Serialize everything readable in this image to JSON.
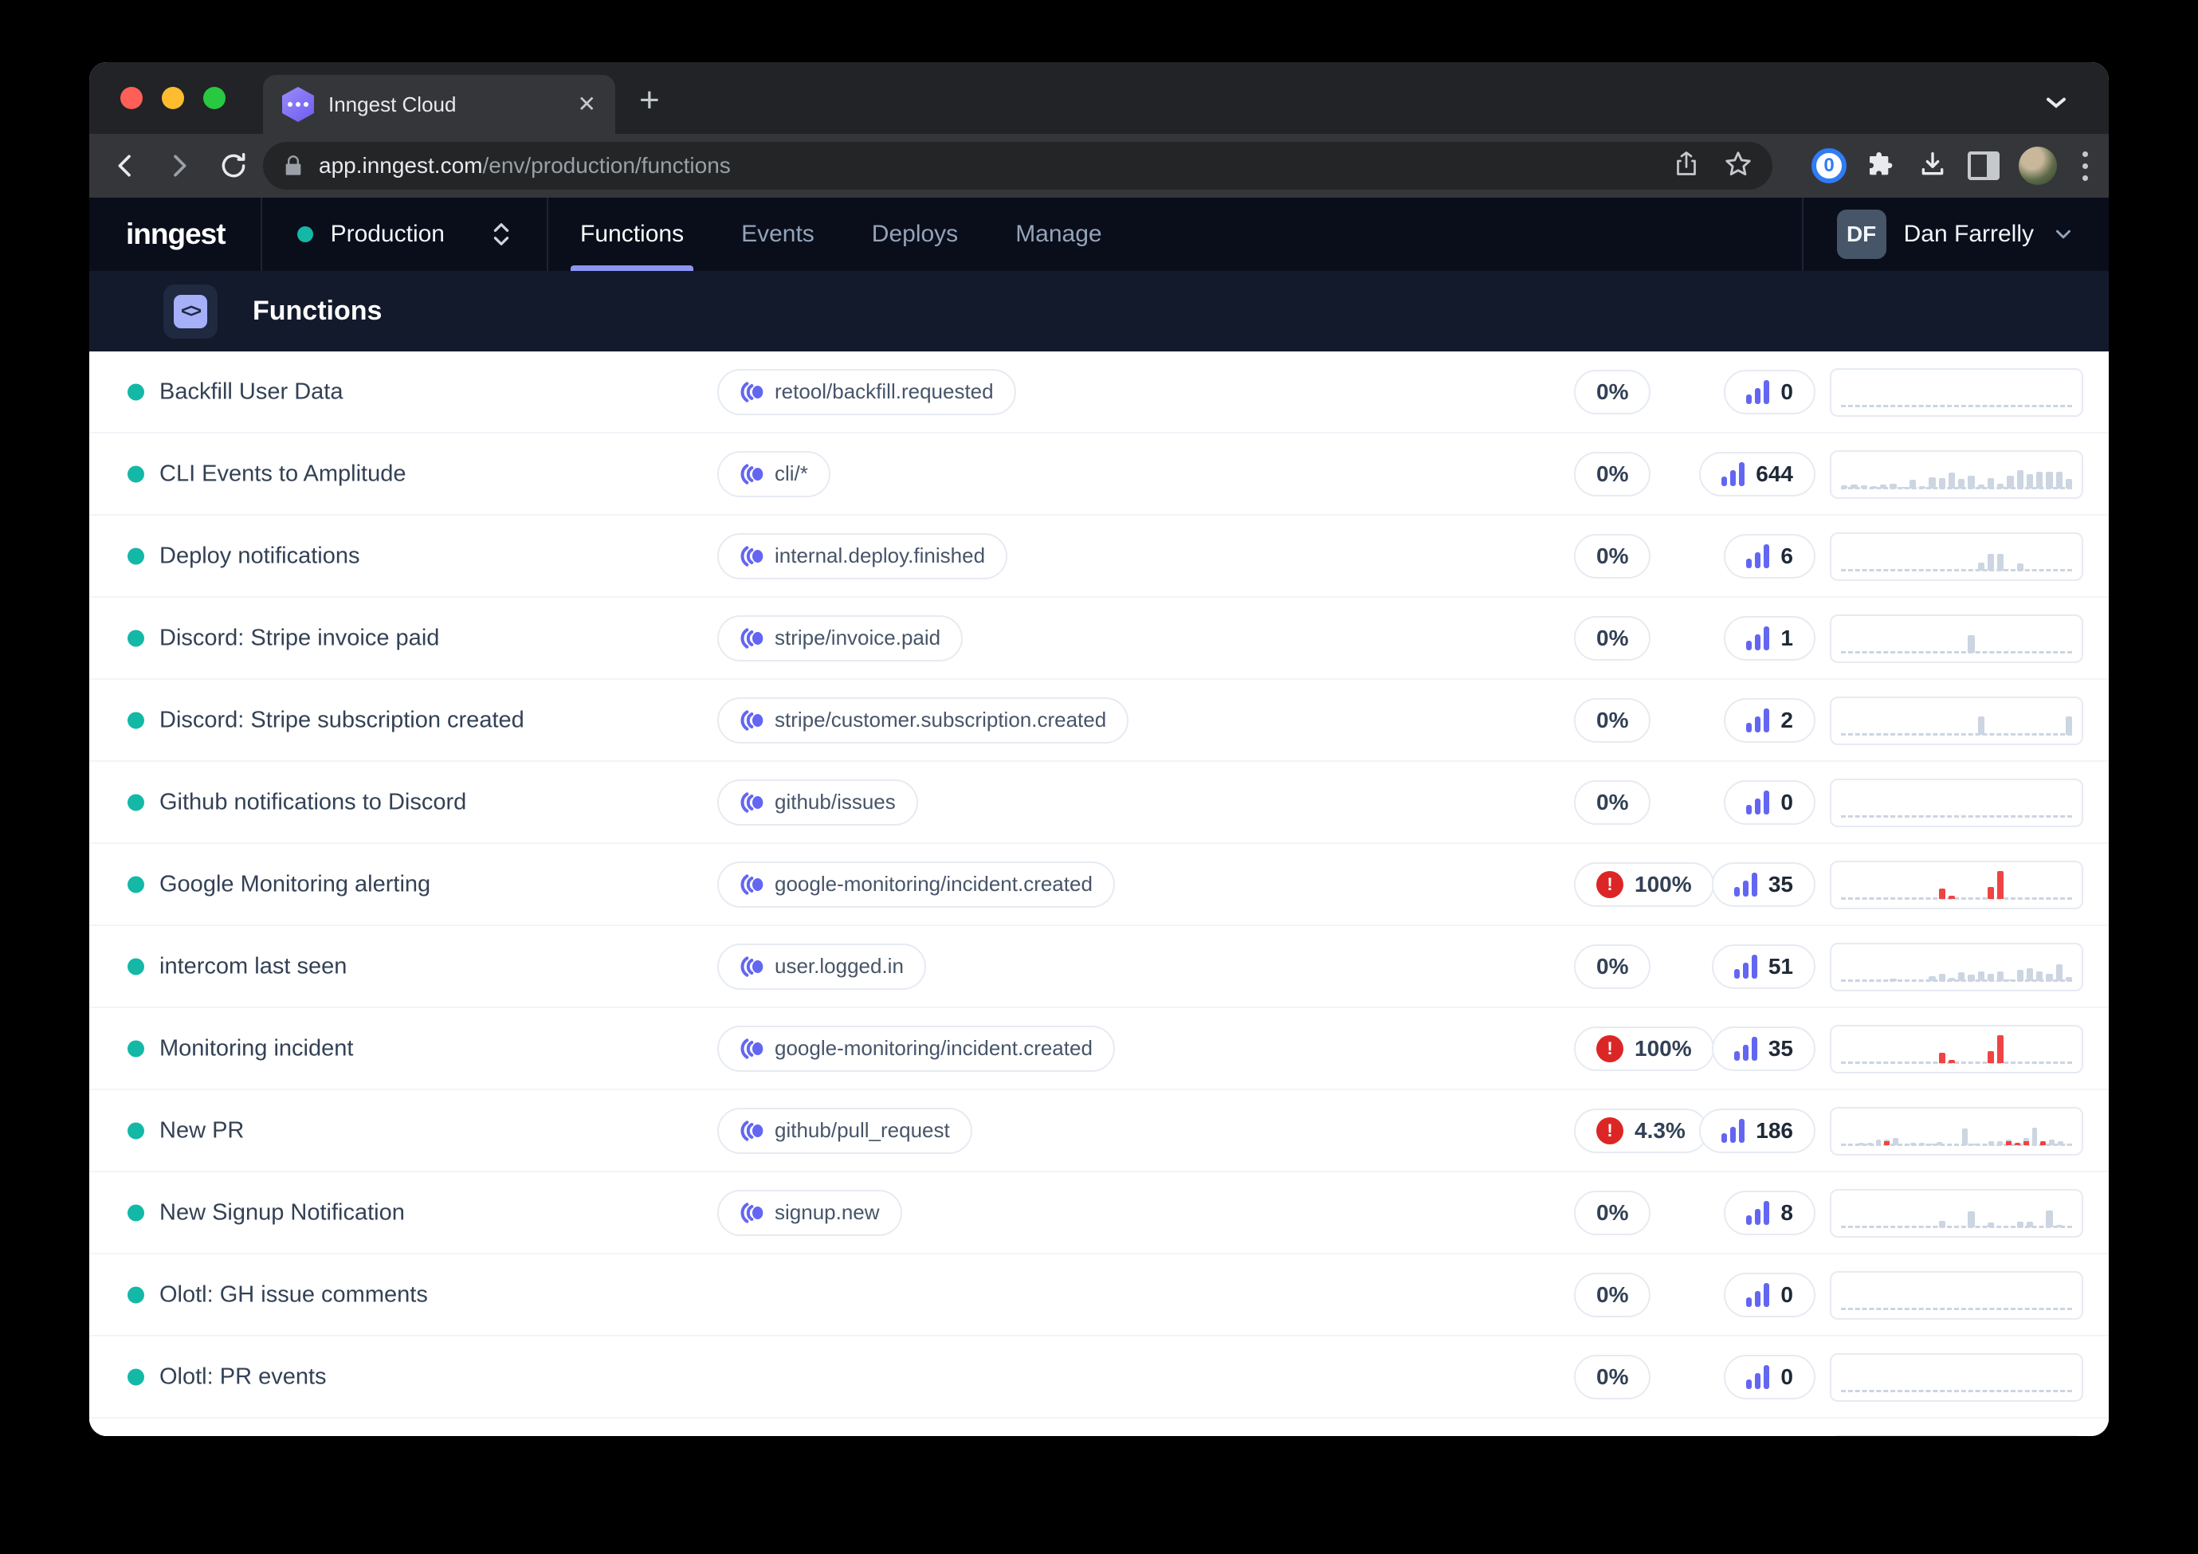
{
  "colors": {
    "accent_indigo": "#6366f1",
    "teal_status": "#14b8a6",
    "error_red": "#dc2626",
    "chart_gray": "#ccd5e1",
    "chart_red": "#ef4444",
    "nav_bg": "#0a0e1b",
    "pagehead_bg": "#131a2c"
  },
  "browser": {
    "tab_title": "Inngest Cloud",
    "url_host": "app.inngest.com",
    "url_path": "/env/production/functions"
  },
  "nav": {
    "logo": "inngest",
    "environment": "Production",
    "tabs": [
      {
        "label": "Functions",
        "active": true
      },
      {
        "label": "Events",
        "active": false
      },
      {
        "label": "Deploys",
        "active": false
      },
      {
        "label": "Manage",
        "active": false
      }
    ],
    "user": {
      "initials": "DF",
      "name": "Dan Farrelly"
    }
  },
  "page": {
    "title": "Functions"
  },
  "functions": [
    {
      "name": "Backfill User Data",
      "event": "retool/backfill.requested",
      "rate": "0%",
      "error": false,
      "count": "0",
      "bars": []
    },
    {
      "name": "CLI Events to Amplitude",
      "event": "cli/*",
      "rate": "0%",
      "error": false,
      "count": "644",
      "bars": [
        [
          8,
          "g"
        ],
        [
          12,
          "g"
        ],
        [
          8,
          "g"
        ],
        [
          6,
          "g"
        ],
        [
          12,
          "g"
        ],
        [
          14,
          "g"
        ],
        [
          4,
          "g"
        ],
        [
          24,
          "g"
        ],
        [
          6,
          "g"
        ],
        [
          30,
          "g"
        ],
        [
          28,
          "g"
        ],
        [
          44,
          "g"
        ],
        [
          26,
          "g"
        ],
        [
          36,
          "g"
        ],
        [
          10,
          "g"
        ],
        [
          28,
          "g"
        ],
        [
          14,
          "g"
        ],
        [
          36,
          "g"
        ],
        [
          50,
          "g"
        ],
        [
          40,
          "g"
        ],
        [
          46,
          "g"
        ],
        [
          46,
          "g"
        ],
        [
          46,
          "g"
        ],
        [
          26,
          "g"
        ]
      ]
    },
    {
      "name": "Deploy notifications",
      "event": "internal.deploy.finished",
      "rate": "0%",
      "error": false,
      "count": "6",
      "bars": [
        [
          0,
          "g"
        ],
        [
          0,
          "g"
        ],
        [
          0,
          "g"
        ],
        [
          0,
          "g"
        ],
        [
          0,
          "g"
        ],
        [
          0,
          "g"
        ],
        [
          0,
          "g"
        ],
        [
          0,
          "g"
        ],
        [
          0,
          "g"
        ],
        [
          0,
          "g"
        ],
        [
          0,
          "g"
        ],
        [
          0,
          "g"
        ],
        [
          0,
          "g"
        ],
        [
          0,
          "g"
        ],
        [
          22,
          "g"
        ],
        [
          46,
          "g"
        ],
        [
          46,
          "g"
        ],
        [
          0,
          "g"
        ],
        [
          20,
          "g"
        ],
        [
          0,
          "g"
        ],
        [
          0,
          "g"
        ],
        [
          0,
          "g"
        ],
        [
          0,
          "g"
        ],
        [
          0,
          "g"
        ]
      ]
    },
    {
      "name": "Discord: Stripe invoice paid",
      "event": "stripe/invoice.paid",
      "rate": "0%",
      "error": false,
      "count": "1",
      "bars": [
        [
          0,
          "g"
        ],
        [
          0,
          "g"
        ],
        [
          0,
          "g"
        ],
        [
          0,
          "g"
        ],
        [
          0,
          "g"
        ],
        [
          0,
          "g"
        ],
        [
          0,
          "g"
        ],
        [
          0,
          "g"
        ],
        [
          0,
          "g"
        ],
        [
          0,
          "g"
        ],
        [
          0,
          "g"
        ],
        [
          0,
          "g"
        ],
        [
          0,
          "g"
        ],
        [
          48,
          "g"
        ],
        [
          0,
          "g"
        ],
        [
          0,
          "g"
        ],
        [
          0,
          "g"
        ],
        [
          0,
          "g"
        ],
        [
          0,
          "g"
        ],
        [
          0,
          "g"
        ],
        [
          0,
          "g"
        ],
        [
          0,
          "g"
        ],
        [
          0,
          "g"
        ],
        [
          0,
          "g"
        ]
      ]
    },
    {
      "name": "Discord: Stripe subscription created",
      "event": "stripe/customer.subscription.created",
      "rate": "0%",
      "error": false,
      "count": "2",
      "bars": [
        [
          0,
          "g"
        ],
        [
          0,
          "g"
        ],
        [
          0,
          "g"
        ],
        [
          0,
          "g"
        ],
        [
          0,
          "g"
        ],
        [
          0,
          "g"
        ],
        [
          0,
          "g"
        ],
        [
          0,
          "g"
        ],
        [
          0,
          "g"
        ],
        [
          0,
          "g"
        ],
        [
          0,
          "g"
        ],
        [
          0,
          "g"
        ],
        [
          0,
          "g"
        ],
        [
          0,
          "g"
        ],
        [
          50,
          "g"
        ],
        [
          0,
          "g"
        ],
        [
          0,
          "g"
        ],
        [
          0,
          "g"
        ],
        [
          0,
          "g"
        ],
        [
          0,
          "g"
        ],
        [
          0,
          "g"
        ],
        [
          0,
          "g"
        ],
        [
          0,
          "g"
        ],
        [
          50,
          "g"
        ]
      ]
    },
    {
      "name": "Github notifications to Discord",
      "event": "github/issues",
      "rate": "0%",
      "error": false,
      "count": "0",
      "bars": []
    },
    {
      "name": "Google Monitoring alerting",
      "event": "google-monitoring/incident.created",
      "rate": "100%",
      "error": true,
      "count": "35",
      "bars": [
        [
          0,
          "g"
        ],
        [
          0,
          "g"
        ],
        [
          0,
          "g"
        ],
        [
          0,
          "g"
        ],
        [
          0,
          "g"
        ],
        [
          0,
          "g"
        ],
        [
          0,
          "g"
        ],
        [
          0,
          "g"
        ],
        [
          0,
          "g"
        ],
        [
          0,
          "g"
        ],
        [
          28,
          "r"
        ],
        [
          8,
          "r"
        ],
        [
          0,
          "g"
        ],
        [
          0,
          "g"
        ],
        [
          0,
          "g"
        ],
        [
          34,
          "r"
        ],
        [
          78,
          "r"
        ],
        [
          0,
          "g"
        ],
        [
          0,
          "g"
        ],
        [
          0,
          "g"
        ],
        [
          0,
          "g"
        ],
        [
          0,
          "g"
        ],
        [
          0,
          "g"
        ],
        [
          0,
          "g"
        ]
      ]
    },
    {
      "name": "intercom last seen",
      "event": "user.logged.in",
      "rate": "0%",
      "error": false,
      "count": "51",
      "bars": [
        [
          0,
          "g"
        ],
        [
          0,
          "g"
        ],
        [
          0,
          "g"
        ],
        [
          0,
          "g"
        ],
        [
          0,
          "g"
        ],
        [
          6,
          "g"
        ],
        [
          0,
          "g"
        ],
        [
          0,
          "g"
        ],
        [
          0,
          "g"
        ],
        [
          14,
          "g"
        ],
        [
          20,
          "g"
        ],
        [
          8,
          "g"
        ],
        [
          24,
          "g"
        ],
        [
          18,
          "g"
        ],
        [
          26,
          "g"
        ],
        [
          20,
          "g"
        ],
        [
          26,
          "g"
        ],
        [
          4,
          "g"
        ],
        [
          32,
          "g"
        ],
        [
          36,
          "g"
        ],
        [
          26,
          "g"
        ],
        [
          20,
          "g"
        ],
        [
          46,
          "g"
        ],
        [
          12,
          "g"
        ]
      ]
    },
    {
      "name": "Monitoring incident",
      "event": "google-monitoring/incident.created",
      "rate": "100%",
      "error": true,
      "count": "35",
      "bars": [
        [
          0,
          "g"
        ],
        [
          0,
          "g"
        ],
        [
          0,
          "g"
        ],
        [
          0,
          "g"
        ],
        [
          0,
          "g"
        ],
        [
          0,
          "g"
        ],
        [
          0,
          "g"
        ],
        [
          0,
          "g"
        ],
        [
          0,
          "g"
        ],
        [
          0,
          "g"
        ],
        [
          28,
          "r"
        ],
        [
          8,
          "r"
        ],
        [
          0,
          "g"
        ],
        [
          0,
          "g"
        ],
        [
          0,
          "g"
        ],
        [
          34,
          "r"
        ],
        [
          78,
          "r"
        ],
        [
          0,
          "g"
        ],
        [
          0,
          "g"
        ],
        [
          0,
          "g"
        ],
        [
          0,
          "g"
        ],
        [
          0,
          "g"
        ],
        [
          0,
          "g"
        ],
        [
          0,
          "g"
        ]
      ]
    },
    {
      "name": "New PR",
      "event": "github/pull_request",
      "rate": "4.3%",
      "error": true,
      "count": "186",
      "bars": [
        [
          4,
          "g"
        ],
        [
          0,
          "g"
        ],
        [
          6,
          "g"
        ],
        [
          6,
          "g"
        ],
        [
          16,
          "g"
        ],
        [
          16,
          "b"
        ],
        [
          20,
          "g"
        ],
        [
          0,
          "g"
        ],
        [
          6,
          "g"
        ],
        [
          6,
          "g"
        ],
        [
          4,
          "g"
        ],
        [
          8,
          "g"
        ],
        [
          0,
          "g"
        ],
        [
          4,
          "g"
        ],
        [
          46,
          "g"
        ],
        [
          4,
          "g"
        ],
        [
          0,
          "g"
        ],
        [
          10,
          "g"
        ],
        [
          12,
          "g"
        ],
        [
          16,
          "b"
        ],
        [
          6,
          "r"
        ],
        [
          20,
          "b"
        ],
        [
          48,
          "g"
        ],
        [
          12,
          "b"
        ],
        [
          16,
          "g"
        ],
        [
          10,
          "g"
        ],
        [
          4,
          "g"
        ]
      ]
    },
    {
      "name": "New Signup Notification",
      "event": "signup.new",
      "rate": "0%",
      "error": false,
      "count": "8",
      "bars": [
        [
          0,
          "g"
        ],
        [
          0,
          "g"
        ],
        [
          0,
          "g"
        ],
        [
          0,
          "g"
        ],
        [
          0,
          "g"
        ],
        [
          0,
          "g"
        ],
        [
          0,
          "g"
        ],
        [
          0,
          "g"
        ],
        [
          0,
          "g"
        ],
        [
          0,
          "g"
        ],
        [
          18,
          "g"
        ],
        [
          0,
          "g"
        ],
        [
          0,
          "g"
        ],
        [
          44,
          "g"
        ],
        [
          0,
          "g"
        ],
        [
          14,
          "g"
        ],
        [
          0,
          "g"
        ],
        [
          0,
          "g"
        ],
        [
          16,
          "g"
        ],
        [
          16,
          "g"
        ],
        [
          0,
          "g"
        ],
        [
          46,
          "g"
        ],
        [
          6,
          "g"
        ],
        [
          0,
          "g"
        ]
      ]
    },
    {
      "name": "Olotl: GH issue comments",
      "event": "",
      "rate": "0%",
      "error": false,
      "count": "0",
      "bars": []
    },
    {
      "name": "Olotl: PR events",
      "event": "",
      "rate": "0%",
      "error": false,
      "count": "0",
      "bars": []
    },
    {
      "name": "",
      "event": "",
      "rate": "",
      "error": false,
      "count": "",
      "bars": [],
      "partial": true
    }
  ]
}
